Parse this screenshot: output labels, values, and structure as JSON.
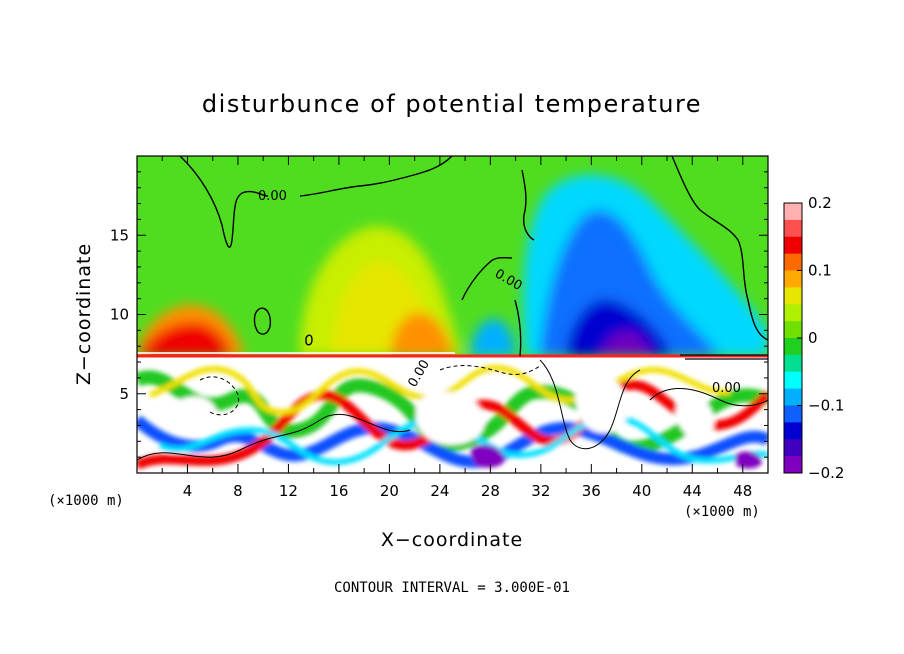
{
  "chart_data": {
    "type": "heatmap",
    "title": "disturbunce of potential temperature",
    "xlabel": "X−coordinate",
    "ylabel": "Z−coordinate",
    "x_unit": "(×1000 m)",
    "xlim": [
      0,
      50
    ],
    "ylim": [
      0,
      20
    ],
    "x_ticks": [
      4,
      8,
      12,
      16,
      20,
      24,
      28,
      32,
      36,
      40,
      44,
      48
    ],
    "y_ticks": [
      5,
      10,
      15
    ],
    "colorbar": {
      "range": [
        -0.2,
        0.2
      ],
      "tick_values": [
        0.2,
        0.1,
        0,
        -0.1,
        -0.2
      ],
      "tick_labels": [
        "0.2",
        "0.1",
        "0",
        "−0.1",
        "−0.2"
      ],
      "colors": [
        "#ffb0b0",
        "#ff5050",
        "#f00000",
        "#ff6a00",
        "#ffaa00",
        "#e6e600",
        "#b0f000",
        "#70e000",
        "#20d020",
        "#00e090",
        "#00ffff",
        "#00b0ff",
        "#1060ff",
        "#0000d0",
        "#4000c0",
        "#8000c0"
      ]
    },
    "contour_labels": [
      "0.00",
      "0.00",
      "0.00",
      "0.00"
    ],
    "contour_interval": "3.000E-01",
    "footer": "CONTOUR INTERVAL = 3.000E-01"
  }
}
